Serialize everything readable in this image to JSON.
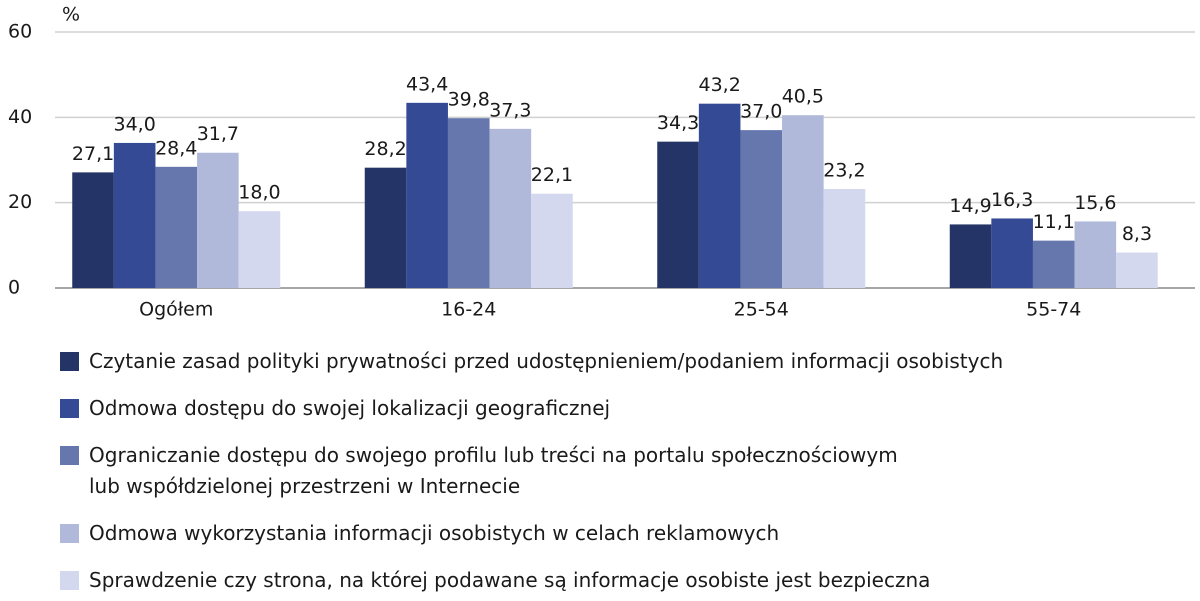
{
  "chart_data": {
    "type": "bar",
    "y_label": "%",
    "categories": [
      "Ogółem",
      "16-24",
      "25-54",
      "55-74"
    ],
    "series": [
      {
        "name": "Czytanie zasad polityki prywatności przed udostępnieniem/podaniem informacji osobistych",
        "color": "#253466",
        "values": [
          27.1,
          28.2,
          34.3,
          14.9
        ],
        "value_labels": [
          "27,1",
          "28,2",
          "34,3",
          "14,9"
        ]
      },
      {
        "name": "Odmowa dostępu do swojej lokalizacji geograficznej",
        "color": "#344a94",
        "values": [
          34.0,
          43.4,
          43.2,
          16.3
        ],
        "value_labels": [
          "34,0",
          "43,4",
          "43,2",
          "16,3"
        ]
      },
      {
        "name": "Ograniczanie dostępu do swojego profilu lub treści na portalu społecznościowym\nlub współdzielonej przestrzeni w Internecie",
        "color": "#6577ad",
        "values": [
          28.4,
          39.8,
          37.0,
          11.1
        ],
        "value_labels": [
          "28,4",
          "39,8",
          "37,0",
          "11,1"
        ]
      },
      {
        "name": "Odmowa wykorzystania informacji osobistych w celach reklamowych",
        "color": "#b1b9db",
        "values": [
          31.7,
          37.3,
          40.5,
          15.6
        ],
        "value_labels": [
          "31,7",
          "37,3",
          "40,5",
          "15,6"
        ]
      },
      {
        "name": "Sprawdzenie czy strona, na której podawane są informacje osobiste jest bezpieczna",
        "color": "#d4d8ee",
        "values": [
          18.0,
          22.1,
          23.2,
          8.3
        ],
        "value_labels": [
          "18,0",
          "22,1",
          "23,2",
          "8,3"
        ]
      }
    ],
    "ylim": [
      0,
      60
    ],
    "yticks": [
      0,
      20,
      40,
      60
    ],
    "grid": true
  }
}
